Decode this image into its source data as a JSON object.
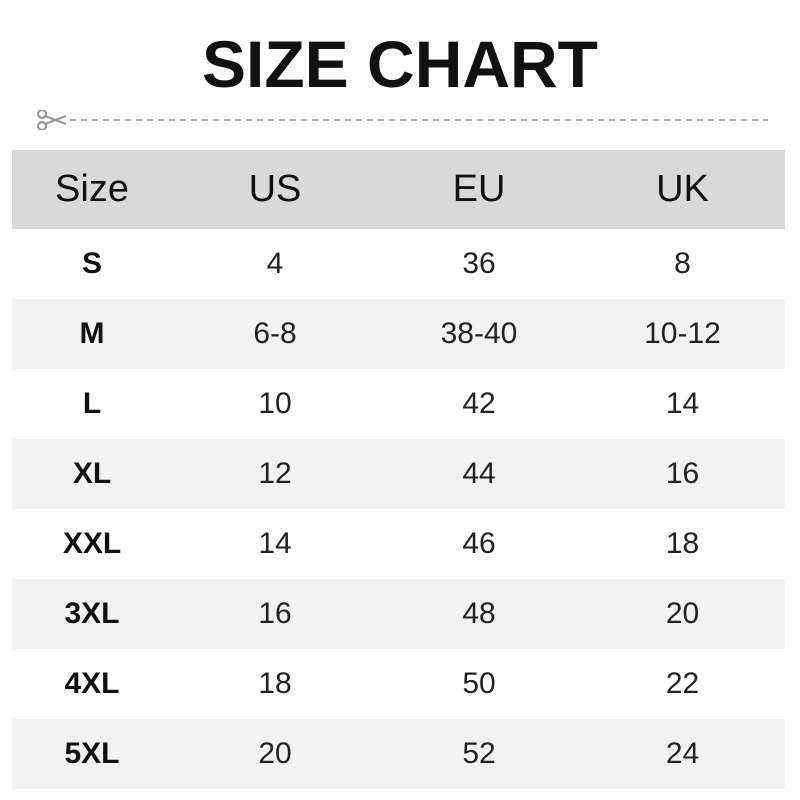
{
  "title": "SIZE CHART",
  "icons": {
    "cut_line": "scissors-icon"
  },
  "colors": {
    "header_bg": "#d9d9d9",
    "alt_row_bg": "#f2f2f2"
  },
  "table": {
    "headers": [
      "Size",
      "US",
      "EU",
      "UK"
    ],
    "rows": [
      [
        "S",
        "4",
        "36",
        "8"
      ],
      [
        "M",
        "6-8",
        "38-40",
        "10-12"
      ],
      [
        "L",
        "10",
        "42",
        "14"
      ],
      [
        "XL",
        "12",
        "44",
        "16"
      ],
      [
        "XXL",
        "14",
        "46",
        "18"
      ],
      [
        "3XL",
        "16",
        "48",
        "20"
      ],
      [
        "4XL",
        "18",
        "50",
        "22"
      ],
      [
        "5XL",
        "20",
        "52",
        "24"
      ]
    ]
  }
}
